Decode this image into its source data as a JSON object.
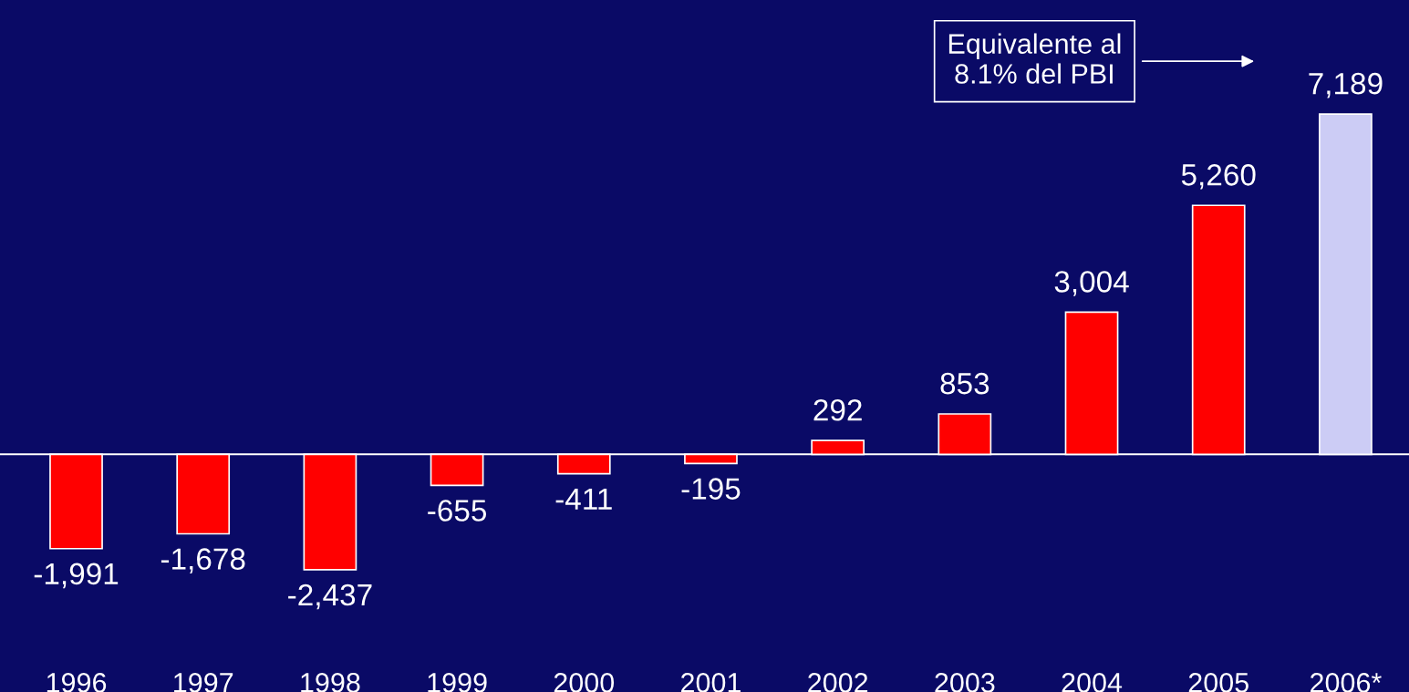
{
  "chart_data": {
    "type": "bar",
    "categories": [
      "1996",
      "1997",
      "1998",
      "1999",
      "2000",
      "2001",
      "2002",
      "2003",
      "2004",
      "2005",
      "2006*"
    ],
    "values": [
      -1991,
      -1678,
      -2437,
      -655,
      -411,
      -195,
      292,
      853,
      3004,
      5260,
      7189
    ],
    "colors": [
      "#ff0000",
      "#ff0000",
      "#ff0000",
      "#ff0000",
      "#ff0000",
      "#ff0000",
      "#ff0000",
      "#ff0000",
      "#ff0000",
      "#ff0000",
      "#ccccf5"
    ],
    "value_labels": [
      "-1,991",
      "-1,678",
      "-2,437",
      "-655",
      "-411",
      "-195",
      "292",
      "853",
      "3,004",
      "5,260",
      "7,189"
    ],
    "grid": false,
    "legend": false,
    "annotations": [
      "Equivalente al\n8.1% del PBI"
    ]
  }
}
